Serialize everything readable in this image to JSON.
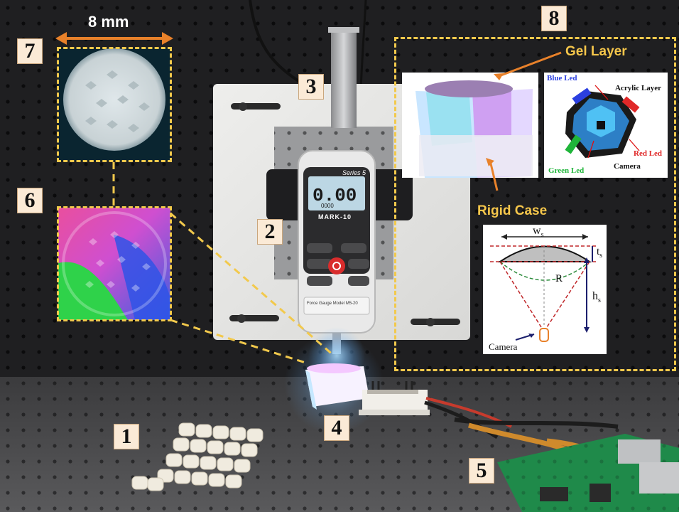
{
  "scale_label": "8 mm",
  "numbers": {
    "n1": "1",
    "n2": "2",
    "n3": "3",
    "n4": "4",
    "n5": "5",
    "n6": "6",
    "n7": "7",
    "n8": "8"
  },
  "inset_labels": {
    "gel_layer": "Gel Layer",
    "rigid_case": "Rigid Case"
  },
  "diagram_labels": {
    "blue_led": "Blue Led",
    "acrylic_layer": "Acrylic Layer",
    "red_led": "Red Led",
    "green_led": "Green Led",
    "camera": "Camera"
  },
  "geometry_labels": {
    "ws": "w",
    "ws_sub": "s",
    "ts": "t",
    "ts_sub": "s",
    "R": "R",
    "hs": "h",
    "hs_sub": "s",
    "camera": "Camera"
  },
  "gauge": {
    "series": "Series 5",
    "reading": "0.00",
    "brand": "MARK-10",
    "sub_reading": "0000",
    "title": "Force Gauge Model M5-20"
  },
  "colors": {
    "accent_dash": "#f2c94c",
    "arrow_orange": "#e8812a",
    "tag_bg": "#fbead6",
    "led_blue": "#2b3fe0",
    "led_red": "#e02828",
    "led_green": "#1fb53a"
  }
}
